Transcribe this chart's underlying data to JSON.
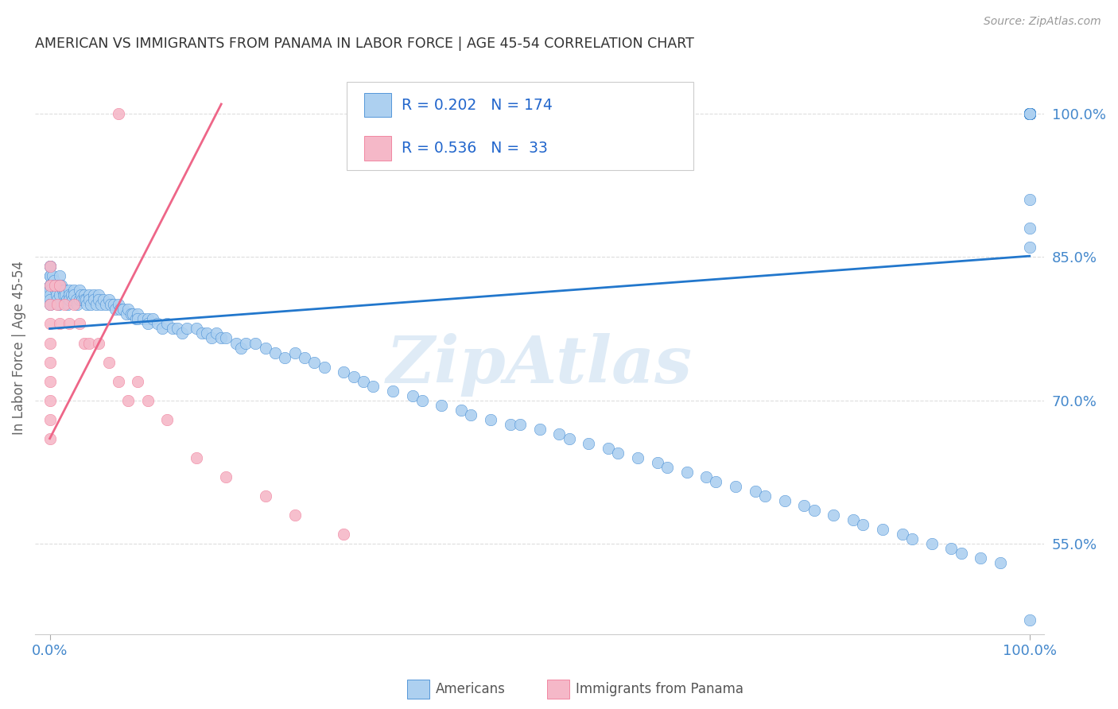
{
  "title": "AMERICAN VS IMMIGRANTS FROM PANAMA IN LABOR FORCE | AGE 45-54 CORRELATION CHART",
  "source": "Source: ZipAtlas.com",
  "ylabel": "In Labor Force | Age 45-54",
  "americans_R": 0.202,
  "americans_N": 174,
  "panama_R": 0.536,
  "panama_N": 33,
  "americans_color": "#add0f0",
  "panama_color": "#f5b8c8",
  "trendline_americans_color": "#2277cc",
  "trendline_panama_color": "#ee6688",
  "watermark": "ZipAtlas",
  "background_color": "#ffffff",
  "grid_color": "#dddddd",
  "title_color": "#333333",
  "axis_color": "#4488cc",
  "legend_border_color": "#cccccc",
  "source_color": "#999999",
  "ylabel_color": "#666666",
  "legend_text_color": "#222222",
  "legend_r_color": "#2266cc",
  "bottom_legend_color": "#555555",
  "yticks": [
    0.55,
    0.7,
    0.85,
    1.0
  ],
  "ytick_labels": [
    "55.0%",
    "70.0%",
    "85.0%",
    "100.0%"
  ],
  "xtick_labels": [
    "0.0%",
    "100.0%"
  ],
  "xlim": [
    -0.015,
    1.015
  ],
  "ylim": [
    0.455,
    1.055
  ],
  "americans_x": [
    0.0,
    0.0,
    0.0,
    0.0,
    0.0,
    0.0,
    0.0,
    0.0,
    0.0,
    0.0,
    0.0,
    0.0,
    0.003,
    0.004,
    0.005,
    0.006,
    0.007,
    0.008,
    0.009,
    0.01,
    0.01,
    0.01,
    0.012,
    0.013,
    0.014,
    0.015,
    0.016,
    0.017,
    0.018,
    0.02,
    0.02,
    0.02,
    0.022,
    0.023,
    0.025,
    0.025,
    0.027,
    0.028,
    0.03,
    0.03,
    0.032,
    0.033,
    0.035,
    0.035,
    0.037,
    0.038,
    0.04,
    0.04,
    0.042,
    0.045,
    0.045,
    0.047,
    0.05,
    0.05,
    0.052,
    0.055,
    0.057,
    0.06,
    0.062,
    0.065,
    0.067,
    0.07,
    0.072,
    0.075,
    0.078,
    0.08,
    0.083,
    0.085,
    0.088,
    0.09,
    0.09,
    0.095,
    0.1,
    0.1,
    0.105,
    0.11,
    0.115,
    0.12,
    0.125,
    0.13,
    0.135,
    0.14,
    0.15,
    0.155,
    0.16,
    0.165,
    0.17,
    0.175,
    0.18,
    0.19,
    0.195,
    0.2,
    0.21,
    0.22,
    0.23,
    0.24,
    0.25,
    0.26,
    0.27,
    0.28,
    0.3,
    0.31,
    0.32,
    0.33,
    0.35,
    0.37,
    0.38,
    0.4,
    0.42,
    0.43,
    0.45,
    0.47,
    0.48,
    0.5,
    0.52,
    0.53,
    0.55,
    0.57,
    0.58,
    0.6,
    0.62,
    0.63,
    0.65,
    0.67,
    0.68,
    0.7,
    0.72,
    0.73,
    0.75,
    0.77,
    0.78,
    0.8,
    0.82,
    0.83,
    0.85,
    0.87,
    0.88,
    0.9,
    0.92,
    0.93,
    0.95,
    0.97,
    1.0,
    1.0,
    1.0,
    1.0,
    1.0,
    1.0,
    1.0,
    1.0,
    1.0,
    1.0,
    1.0,
    1.0,
    1.0,
    1.0,
    1.0,
    1.0,
    1.0,
    1.0,
    1.0,
    1.0,
    1.0,
    1.0,
    1.0,
    1.0,
    1.0,
    1.0,
    1.0,
    1.0,
    1.0,
    1.0,
    1.0,
    1.0,
    1.0,
    1.0
  ],
  "americans_y": [
    0.84,
    0.84,
    0.83,
    0.83,
    0.82,
    0.82,
    0.82,
    0.82,
    0.815,
    0.81,
    0.805,
    0.8,
    0.83,
    0.825,
    0.82,
    0.815,
    0.81,
    0.805,
    0.8,
    0.83,
    0.82,
    0.81,
    0.82,
    0.815,
    0.81,
    0.815,
    0.81,
    0.805,
    0.8,
    0.815,
    0.81,
    0.805,
    0.81,
    0.805,
    0.815,
    0.81,
    0.805,
    0.8,
    0.815,
    0.805,
    0.81,
    0.805,
    0.81,
    0.805,
    0.805,
    0.8,
    0.81,
    0.805,
    0.8,
    0.81,
    0.805,
    0.8,
    0.81,
    0.805,
    0.8,
    0.805,
    0.8,
    0.805,
    0.8,
    0.8,
    0.795,
    0.8,
    0.795,
    0.795,
    0.79,
    0.795,
    0.79,
    0.79,
    0.785,
    0.79,
    0.785,
    0.785,
    0.785,
    0.78,
    0.785,
    0.78,
    0.775,
    0.78,
    0.775,
    0.775,
    0.77,
    0.775,
    0.775,
    0.77,
    0.77,
    0.765,
    0.77,
    0.765,
    0.765,
    0.76,
    0.755,
    0.76,
    0.76,
    0.755,
    0.75,
    0.745,
    0.75,
    0.745,
    0.74,
    0.735,
    0.73,
    0.725,
    0.72,
    0.715,
    0.71,
    0.705,
    0.7,
    0.695,
    0.69,
    0.685,
    0.68,
    0.675,
    0.675,
    0.67,
    0.665,
    0.66,
    0.655,
    0.65,
    0.645,
    0.64,
    0.635,
    0.63,
    0.625,
    0.62,
    0.615,
    0.61,
    0.605,
    0.6,
    0.595,
    0.59,
    0.585,
    0.58,
    0.575,
    0.57,
    0.565,
    0.56,
    0.555,
    0.55,
    0.545,
    0.54,
    0.535,
    0.53,
    1.0,
    1.0,
    1.0,
    1.0,
    1.0,
    1.0,
    1.0,
    1.0,
    1.0,
    1.0,
    1.0,
    1.0,
    1.0,
    1.0,
    1.0,
    1.0,
    1.0,
    1.0,
    1.0,
    1.0,
    1.0,
    1.0,
    1.0,
    1.0,
    1.0,
    1.0,
    1.0,
    1.0,
    1.0,
    1.0,
    0.91,
    0.88,
    0.86,
    0.47
  ],
  "panama_x": [
    0.0,
    0.0,
    0.0,
    0.0,
    0.0,
    0.0,
    0.0,
    0.0,
    0.0,
    0.0,
    0.005,
    0.008,
    0.01,
    0.01,
    0.015,
    0.02,
    0.025,
    0.03,
    0.035,
    0.04,
    0.05,
    0.06,
    0.07,
    0.08,
    0.09,
    0.1,
    0.12,
    0.15,
    0.18,
    0.22,
    0.25,
    0.3,
    0.07
  ],
  "panama_y": [
    0.84,
    0.82,
    0.8,
    0.78,
    0.76,
    0.74,
    0.72,
    0.7,
    0.68,
    0.66,
    0.82,
    0.8,
    0.82,
    0.78,
    0.8,
    0.78,
    0.8,
    0.78,
    0.76,
    0.76,
    0.76,
    0.74,
    0.72,
    0.7,
    0.72,
    0.7,
    0.68,
    0.64,
    0.62,
    0.6,
    0.58,
    0.56,
    1.0
  ],
  "trendline_am_x0": 0.0,
  "trendline_am_y0": 0.775,
  "trendline_am_x1": 1.0,
  "trendline_am_y1": 0.851,
  "trendline_pan_x0": 0.0,
  "trendline_pan_y0": 0.66,
  "trendline_pan_x1": 0.175,
  "trendline_pan_y1": 1.01
}
